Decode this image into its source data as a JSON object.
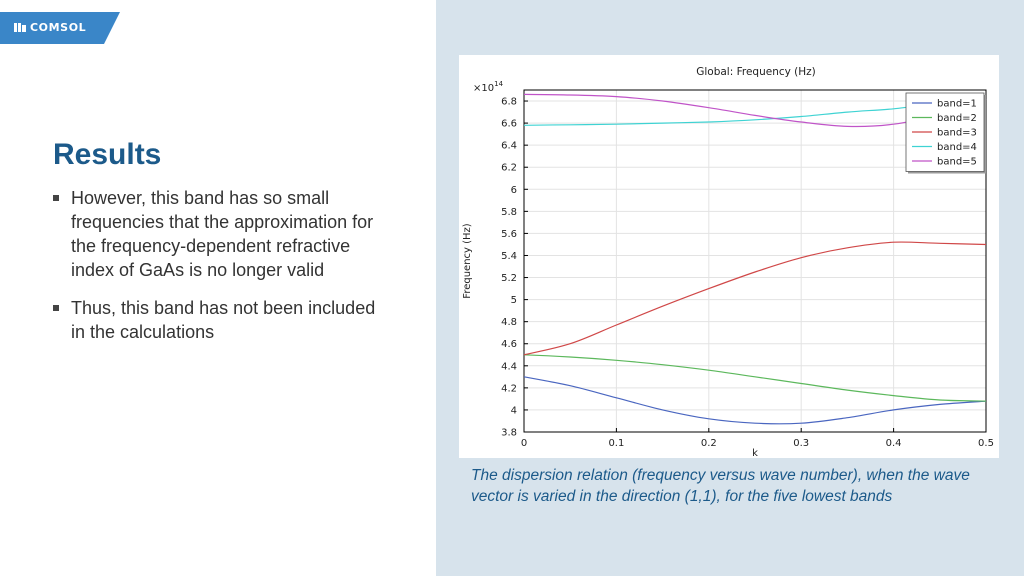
{
  "brand": {
    "logo_text": "COMSOL",
    "tab_color": "#3a86c8"
  },
  "slide": {
    "title": "Results",
    "bullets": [
      "However, this band has so small frequencies that the approximation for the frequency-dependent refractive index of GaAs is no longer valid",
      "Thus, this band has not been included in the calculations"
    ],
    "caption": "The dispersion relation (frequency versus wave number), when the wave vector is varied in the direction (1,1), for the five lowest bands"
  },
  "chart_data": {
    "type": "line",
    "title": "Global: Frequency (Hz)",
    "xlabel": "k",
    "ylabel": "Frequency (Hz)",
    "y_multiplier": "×10",
    "y_multiplier_exp": "14",
    "xlim": [
      0,
      0.5
    ],
    "ylim": [
      3.8,
      6.9
    ],
    "x_ticks": [
      0,
      0.1,
      0.2,
      0.3,
      0.4,
      0.5
    ],
    "y_ticks": [
      3.8,
      4,
      4.2,
      4.4,
      4.6,
      4.8,
      5,
      5.2,
      5.4,
      5.6,
      5.8,
      6,
      6.2,
      6.4,
      6.6,
      6.8
    ],
    "grid": true,
    "legend_position": "top-right",
    "x": [
      0,
      0.05,
      0.1,
      0.15,
      0.2,
      0.25,
      0.3,
      0.35,
      0.4,
      0.45,
      0.5
    ],
    "series": [
      {
        "name": "band=1",
        "color": "#4a66c0",
        "values": [
          4.3,
          4.22,
          4.11,
          4.0,
          3.92,
          3.88,
          3.88,
          3.93,
          4.0,
          4.05,
          4.08
        ]
      },
      {
        "name": "band=2",
        "color": "#5cb85c",
        "values": [
          4.5,
          4.48,
          4.45,
          4.41,
          4.36,
          4.3,
          4.24,
          4.18,
          4.13,
          4.09,
          4.08
        ]
      },
      {
        "name": "band=3",
        "color": "#d04848",
        "values": [
          4.5,
          4.6,
          4.77,
          4.94,
          5.1,
          5.25,
          5.38,
          5.47,
          5.52,
          5.51,
          5.5
        ]
      },
      {
        "name": "band=4",
        "color": "#3fd3d3",
        "values": [
          6.58,
          6.585,
          6.59,
          6.6,
          6.61,
          6.63,
          6.66,
          6.7,
          6.73,
          6.78,
          6.82
        ]
      },
      {
        "name": "band=5",
        "color": "#c054c8",
        "values": [
          6.86,
          6.855,
          6.84,
          6.8,
          6.74,
          6.67,
          6.61,
          6.57,
          6.59,
          6.68,
          6.82
        ]
      }
    ]
  }
}
